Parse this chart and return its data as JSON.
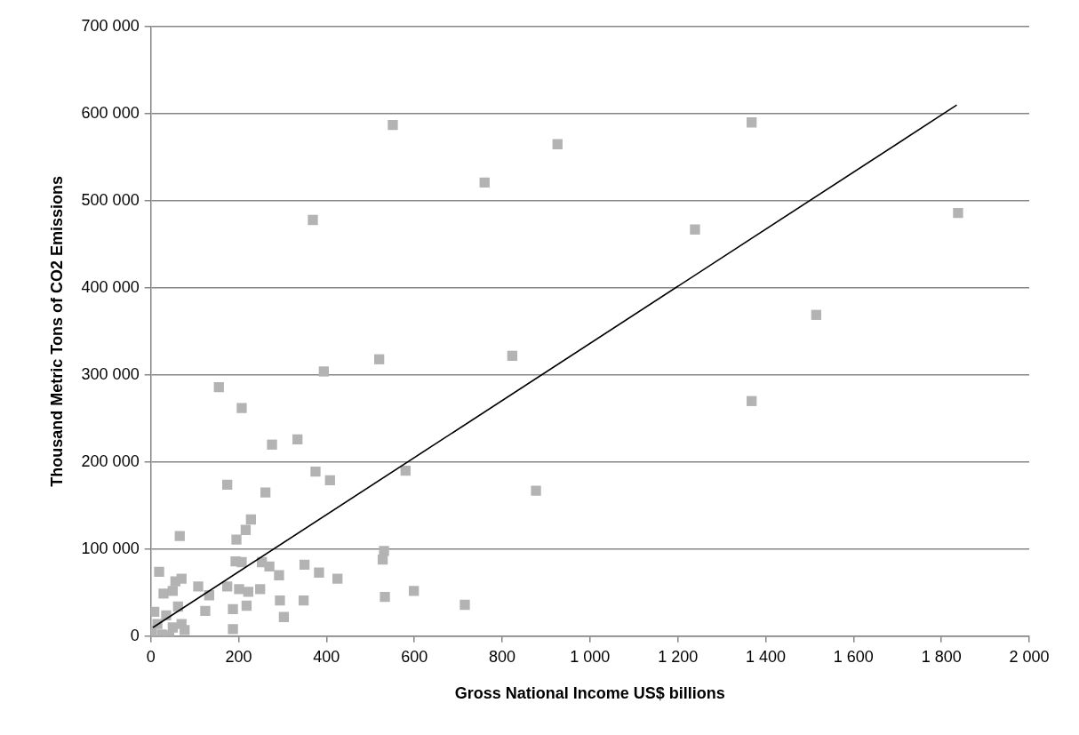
{
  "chart_data": {
    "type": "scatter",
    "xlabel": "Gross National Income US$ billions",
    "ylabel": "Thousand Metric Tons of CO2 Emissions",
    "xlim": [
      0,
      2000
    ],
    "xticks": [
      0,
      200,
      400,
      600,
      800,
      {
        "value": 1000,
        "label": "1 000"
      },
      {
        "value": 1200,
        "label": "1 200"
      },
      {
        "value": 1400,
        "label": "1 400"
      },
      {
        "value": 1600,
        "label": "1 600"
      },
      {
        "value": 1800,
        "label": "1 800"
      },
      {
        "value": 2000,
        "label": "2 000"
      }
    ],
    "ylim": [
      0,
      700000
    ],
    "yticks": [
      0,
      {
        "value": 100000,
        "label": "100 000"
      },
      {
        "value": 200000,
        "label": "200 000"
      },
      {
        "value": 300000,
        "label": "300 000"
      },
      {
        "value": 400000,
        "label": "400 000"
      },
      {
        "value": 500000,
        "label": "500 000"
      },
      {
        "value": 600000,
        "label": "600 000"
      },
      {
        "value": 700000,
        "label": "700 000"
      }
    ],
    "grid": "y",
    "legend": false,
    "series": [
      {
        "type": "scatter",
        "marker": "square",
        "color": "#b3b3b3",
        "x": [
          551,
          1368,
          926,
          760,
          369,
          1239,
          1838,
          1515,
          1368,
          520,
          823,
          394,
          155,
          207,
          276,
          334,
          375,
          408,
          580,
          174,
          261,
          877,
          715,
          66,
          228,
          216,
          195,
          531,
          528,
          193,
          207,
          253,
          270,
          350,
          292,
          383,
          425,
          19,
          70,
          56,
          108,
          29,
          50,
          133,
          174,
          201,
          222,
          249,
          533,
          599,
          294,
          348,
          187,
          218,
          303,
          124,
          62,
          187,
          0,
          15,
          35,
          50,
          70,
          25,
          42,
          77,
          8,
          2
        ],
        "values": [
          587000,
          590000,
          565000,
          521000,
          478000,
          467000,
          486000,
          369000,
          270000,
          318000,
          322000,
          304000,
          286000,
          262000,
          220000,
          226000,
          189000,
          179000,
          190000,
          174000,
          165000,
          167000,
          36000,
          115000,
          134000,
          122000,
          111000,
          98000,
          88000,
          86000,
          85000,
          85000,
          80000,
          82000,
          70000,
          73000,
          66000,
          74000,
          66000,
          63000,
          57000,
          49000,
          52000,
          47000,
          57000,
          54000,
          51000,
          54000,
          45000,
          52000,
          41000,
          41000,
          31000,
          35000,
          22000,
          29000,
          34000,
          8000,
          3000,
          14000,
          24000,
          10000,
          14000,
          2000,
          1000,
          7000,
          28000,
          6000
        ]
      },
      {
        "type": "line",
        "marker": "none",
        "color": "#000000",
        "x": [
          5,
          1835
        ],
        "values": [
          10000,
          610000
        ]
      }
    ]
  }
}
